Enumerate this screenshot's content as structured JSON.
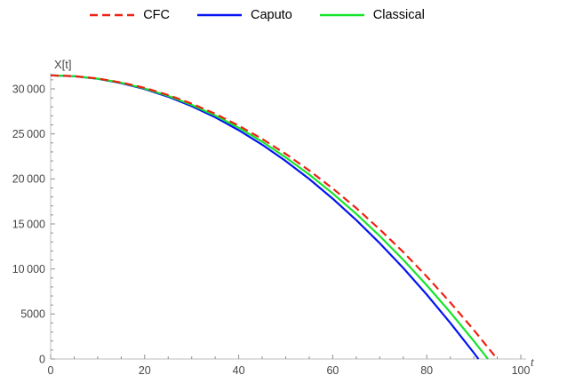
{
  "chart_data": {
    "type": "line",
    "title": "",
    "xlabel": "t",
    "ylabel": "X[t]",
    "xlim": [
      0,
      100
    ],
    "ylim": [
      0,
      31500
    ],
    "grid": false,
    "legend_position": "top",
    "x_major_ticks": [
      0,
      20,
      40,
      60,
      80,
      100
    ],
    "x_tick_labels": [
      "0",
      "20",
      "40",
      "60",
      "80",
      "100"
    ],
    "x_minor_step": 5,
    "y_major_ticks": [
      0,
      5000,
      10000,
      15000,
      20000,
      25000,
      30000
    ],
    "y_tick_labels": [
      "0",
      "5000",
      "10 000",
      "15 000",
      "20 000",
      "25 000",
      "30 000"
    ],
    "y_minor_step": 1000,
    "series": [
      {
        "name": "CFC",
        "color": "#ee2112",
        "dash": "9 5",
        "z": 3,
        "x": [
          0,
          5,
          10,
          15,
          20,
          25,
          30,
          35,
          40,
          45,
          50,
          55,
          60,
          65,
          70,
          75,
          80,
          85,
          90,
          95
        ],
        "y": [
          31500,
          31413,
          31151,
          30715,
          30104,
          29319,
          28359,
          27224,
          25916,
          24433,
          22774,
          20942,
          18935,
          16753,
          14397,
          11867,
          9162,
          6282,
          3228,
          0
        ]
      },
      {
        "name": "Caputo",
        "color": "#0514f0",
        "dash": "",
        "z": 1,
        "x": [
          0,
          5,
          10,
          15,
          20,
          25,
          30,
          35,
          40,
          45,
          50,
          55,
          60,
          65,
          70,
          75,
          80,
          85,
          90,
          91
        ],
        "y": [
          31500,
          31405,
          31120,
          30644,
          29978,
          29123,
          28077,
          26840,
          25414,
          23797,
          21991,
          19994,
          17806,
          15429,
          12862,
          10104,
          7156,
          4018,
          690,
          0
        ]
      },
      {
        "name": "Classical",
        "color": "#16e42b",
        "dash": "",
        "z": 2,
        "x": [
          0,
          5,
          10,
          15,
          20,
          25,
          30,
          35,
          40,
          45,
          50,
          55,
          60,
          65,
          70,
          75,
          80,
          85,
          90,
          93
        ],
        "y": [
          31500,
          31409,
          31136,
          30681,
          30043,
          29224,
          28222,
          27039,
          25673,
          24125,
          22395,
          20483,
          18389,
          16113,
          13654,
          11014,
          8191,
          5187,
          2000,
          0
        ]
      }
    ],
    "axis_color": "#bcbcbc",
    "tick_color": "#8f8f8f",
    "label_color": "#474747"
  }
}
